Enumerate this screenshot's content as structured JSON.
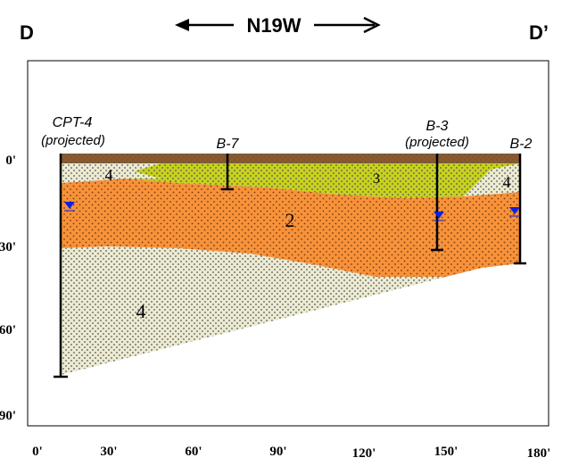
{
  "header": {
    "left_label": "D",
    "right_label": "D’",
    "direction": "N19W"
  },
  "borings": [
    {
      "label": "CPT-4",
      "note": "(projected)"
    },
    {
      "label": "B-7"
    },
    {
      "label": "B-3",
      "note": "(projected)"
    },
    {
      "label": "B-2"
    }
  ],
  "layer_labels": [
    "4",
    "3",
    "2",
    "4",
    "4"
  ],
  "x_axis_labels": [
    "0'",
    "30'",
    "60'",
    "90'",
    "120'",
    "150'",
    "180'"
  ],
  "y_axis_labels": [
    "0'",
    "30'",
    "60'",
    "90'"
  ]
}
